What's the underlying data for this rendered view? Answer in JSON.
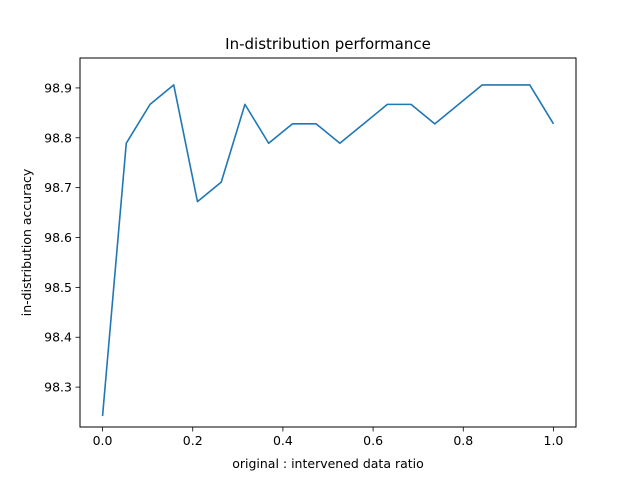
{
  "chart_data": {
    "type": "line",
    "title": "In-distribution performance",
    "xlabel": "original : intervened data ratio",
    "ylabel": "in-distribution accuracy",
    "xlim": [
      -0.05,
      1.05
    ],
    "ylim": [
      98.22,
      98.96
    ],
    "xticks": [
      0.0,
      0.2,
      0.4,
      0.6,
      0.8,
      1.0
    ],
    "xtick_labels": [
      "0.0",
      "0.2",
      "0.4",
      "0.6",
      "0.8",
      "1.0"
    ],
    "yticks": [
      98.3,
      98.4,
      98.5,
      98.6,
      98.7,
      98.8,
      98.9
    ],
    "ytick_labels": [
      "98.3",
      "98.4",
      "98.5",
      "98.6",
      "98.7",
      "98.8",
      "98.9"
    ],
    "grid": false,
    "series": [
      {
        "color": "#1f77b4",
        "x": [
          0.0,
          0.0526,
          0.1053,
          0.1579,
          0.2105,
          0.2632,
          0.3158,
          0.3684,
          0.4211,
          0.4737,
          0.5263,
          0.5789,
          0.6316,
          0.6842,
          0.7368,
          0.7895,
          0.8421,
          0.8947,
          0.9474,
          1.0
        ],
        "y": [
          98.242,
          98.789,
          98.867,
          98.906,
          98.672,
          98.711,
          98.867,
          98.789,
          98.828,
          98.828,
          98.789,
          98.828,
          98.867,
          98.867,
          98.828,
          98.867,
          98.906,
          98.906,
          98.906,
          98.828
        ]
      }
    ]
  }
}
